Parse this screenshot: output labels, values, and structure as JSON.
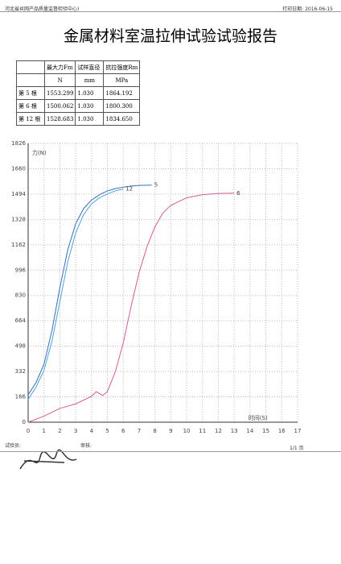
{
  "header": {
    "org": "河北省丝网产品质量监督检验中心)",
    "print_date": "打印日期: 2016-06-15"
  },
  "title": "金属材料室温拉伸试验试验报告",
  "table": {
    "header": [
      "",
      "最大力Fm",
      "试样直径",
      "抗拉强度Rm"
    ],
    "units": [
      "",
      "N",
      "mm",
      "MPa"
    ],
    "rows": [
      [
        "第 5 根",
        "1553.299",
        "1.030",
        "1864.192"
      ],
      [
        "第 6 根",
        "1500.062",
        "1.030",
        "1800.300"
      ],
      [
        "第 12 根",
        "1528.683",
        "1.030",
        "1834.650"
      ]
    ]
  },
  "chart_data": {
    "type": "line",
    "ylabel": "力(N)",
    "xlabel": "时间(S)",
    "xlim": [
      0,
      17
    ],
    "xticks": [
      0,
      1,
      2,
      3,
      4,
      5,
      6,
      7,
      8,
      9,
      10,
      11,
      12,
      13,
      14,
      15,
      16,
      17
    ],
    "ylim": [
      0,
      1826
    ],
    "yticks": [
      0,
      166,
      332,
      498,
      664,
      830,
      996,
      1162,
      1328,
      1494,
      1660,
      1826
    ],
    "grid": true,
    "series": [
      {
        "name": "5",
        "color": "#3a6db3",
        "x": [
          0,
          0.5,
          1,
          1.5,
          2,
          2.5,
          3,
          3.5,
          4,
          4.5,
          5,
          5.5,
          6,
          6.5,
          7,
          7.8
        ],
        "values": [
          180,
          260,
          380,
          600,
          880,
          1130,
          1300,
          1400,
          1455,
          1490,
          1515,
          1530,
          1540,
          1547,
          1551,
          1553
        ]
      },
      {
        "name": "12",
        "color": "#4aa3d8",
        "x": [
          0,
          0.5,
          1,
          1.5,
          2,
          2.5,
          3,
          3.5,
          4,
          4.5,
          5,
          5.5,
          6
        ],
        "values": [
          150,
          230,
          340,
          530,
          790,
          1050,
          1240,
          1360,
          1430,
          1470,
          1495,
          1515,
          1528
        ]
      },
      {
        "name": "6",
        "color": "#d65a9a",
        "x": [
          0,
          1,
          2,
          3,
          4,
          4.3,
          4.7,
          5,
          5.5,
          6,
          6.5,
          7,
          7.5,
          8,
          8.5,
          9,
          10,
          11,
          12,
          13
        ],
        "values": [
          0,
          40,
          90,
          120,
          170,
          200,
          175,
          200,
          330,
          520,
          760,
          980,
          1150,
          1280,
          1370,
          1420,
          1470,
          1490,
          1498,
          1500
        ]
      }
    ]
  },
  "footer": {
    "tester": "试验员:",
    "reviewer": "审核:",
    "page": "1/1 页"
  }
}
